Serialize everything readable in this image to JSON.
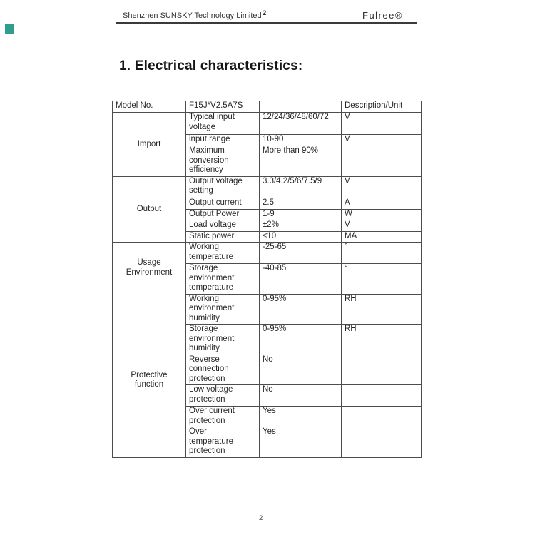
{
  "header": {
    "company": "Shenzhen SUNSKY Technology Limited",
    "superscript": "2",
    "brand": "Fulree®",
    "logo_color": "#2f9e8f"
  },
  "title": "1. Electrical characteristics:",
  "footer": {
    "page_number": "2"
  },
  "table": {
    "header": [
      "Model No.",
      "F15J*V2.5A7S",
      "",
      "Description/Unit"
    ],
    "groups": [
      {
        "label": "Import",
        "rows": [
          {
            "param": "Typical input voltage",
            "value": "12/24/36/48/60/72",
            "unit": "V"
          },
          {
            "param": "input range",
            "value": "10-90",
            "unit": "V"
          },
          {
            "param": "Maximum conversion efficiency",
            "value": "More than 90%",
            "unit": ""
          }
        ]
      },
      {
        "label": "Output",
        "rows": [
          {
            "param": "Output voltage setting",
            "value": "3.3/4.2/5/6/7.5/9",
            "unit": "V"
          },
          {
            "param": "Output current",
            "value": "2.5",
            "unit": "A"
          },
          {
            "param": "Output Power",
            "value": "1-9",
            "unit": "W"
          },
          {
            "param": "Load voltage",
            "value": "±2%",
            "unit": "V"
          },
          {
            "param": "Static power",
            "value": "≤10",
            "unit": "MA"
          }
        ]
      },
      {
        "label": "Usage Environment",
        "rows": [
          {
            "param": "Working temperature",
            "value": "-25-65",
            "unit": "°"
          },
          {
            "param": "Storage environment temperature",
            "value": "-40-85",
            "unit": "°"
          },
          {
            "param": "Working environment humidity",
            "value": "0-95%",
            "unit": "RH"
          },
          {
            "param": "Storage environment humidity",
            "value": "0-95%",
            "unit": "RH"
          }
        ]
      },
      {
        "label": "Protective function",
        "rows": [
          {
            "param": "Reverse connection protection",
            "value": "No",
            "unit": ""
          },
          {
            "param": "Low voltage protection",
            "value": "No",
            "unit": ""
          },
          {
            "param": "Over current protection",
            "value": "Yes",
            "unit": ""
          },
          {
            "param": "Over temperature protection",
            "value": "Yes",
            "unit": ""
          }
        ]
      }
    ]
  }
}
